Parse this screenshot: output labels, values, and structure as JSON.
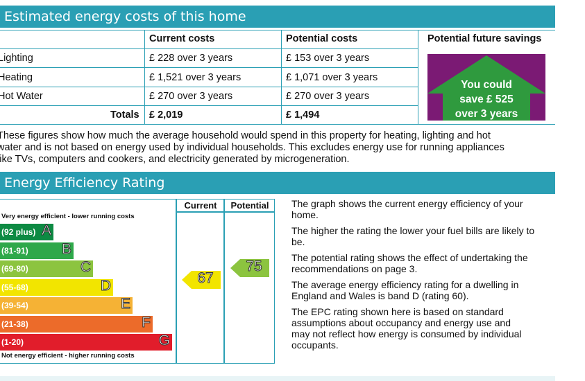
{
  "costs": {
    "title": "Estimated energy costs of this home",
    "headers": {
      "current": "Current costs",
      "potential": "Potential costs",
      "savings": "Potential future savings"
    },
    "rows": [
      {
        "label": "Lighting",
        "current": "£ 228 over 3 years",
        "potential": "£ 153 over 3 years"
      },
      {
        "label": "Heating",
        "current": "£ 1,521 over 3 years",
        "potential": "£ 1,071 over 3 years"
      },
      {
        "label": "Hot Water",
        "current": "£ 270 over 3 years",
        "potential": "£ 270 over 3 years"
      }
    ],
    "totals": {
      "label": "Totals",
      "current": "£ 2,019",
      "potential": "£ 1,494"
    },
    "savings_box": {
      "line1": "You could",
      "line2": "save £ 525",
      "line3": "over 3 years"
    },
    "note_lines": [
      "These figures show how much the average household would spend in this property for heating, lighting and hot",
      "water and is not based on energy used by individual households. This excludes energy use for running appliances",
      "like TVs, computers and cookers, and electricity generated by microgeneration."
    ]
  },
  "rating": {
    "title": "Energy Efficiency Rating",
    "col_current": "Current",
    "col_potential": "Potential",
    "top_caption": "Very energy efficient - lower running costs",
    "bottom_caption": "Not energy efficient - higher running costs",
    "bands": [
      {
        "range": "(92 plus)",
        "letter": "A",
        "color": "#0d8a43"
      },
      {
        "range": "(81-91)",
        "letter": "B",
        "color": "#2ea84a"
      },
      {
        "range": "(69-80)",
        "letter": "C",
        "color": "#8cc43f"
      },
      {
        "range": "(55-68)",
        "letter": "D",
        "color": "#f2e500"
      },
      {
        "range": "(39-54)",
        "letter": "E",
        "color": "#f5b235"
      },
      {
        "range": "(21-38)",
        "letter": "F",
        "color": "#ec6b2a"
      },
      {
        "range": "(1-20)",
        "letter": "G",
        "color": "#e11d2b"
      }
    ],
    "current_value": "67",
    "potential_value": "75",
    "current_color": "#f2e500",
    "potential_color": "#8cc43f",
    "explanations": [
      [
        "The graph shows the current energy efficiency of your",
        "home."
      ],
      [
        "The higher the rating the lower your fuel bills are likely to",
        "be."
      ],
      [
        "The potential rating shows the effect of undertaking the",
        "recommendations on page 3."
      ],
      [
        "The average energy efficiency rating for a dwelling in",
        "England and Wales is band D (rating 60)."
      ],
      [
        "The EPC rating shown here is based on standard",
        "assumptions about occupancy and energy use and",
        "may not reflect how energy is consumed by individual",
        "occupants."
      ]
    ]
  },
  "colors": {
    "teal": "#2a9fb4",
    "savings_bg": "#7b1a74",
    "arrow_green": "#2f9a3e"
  }
}
